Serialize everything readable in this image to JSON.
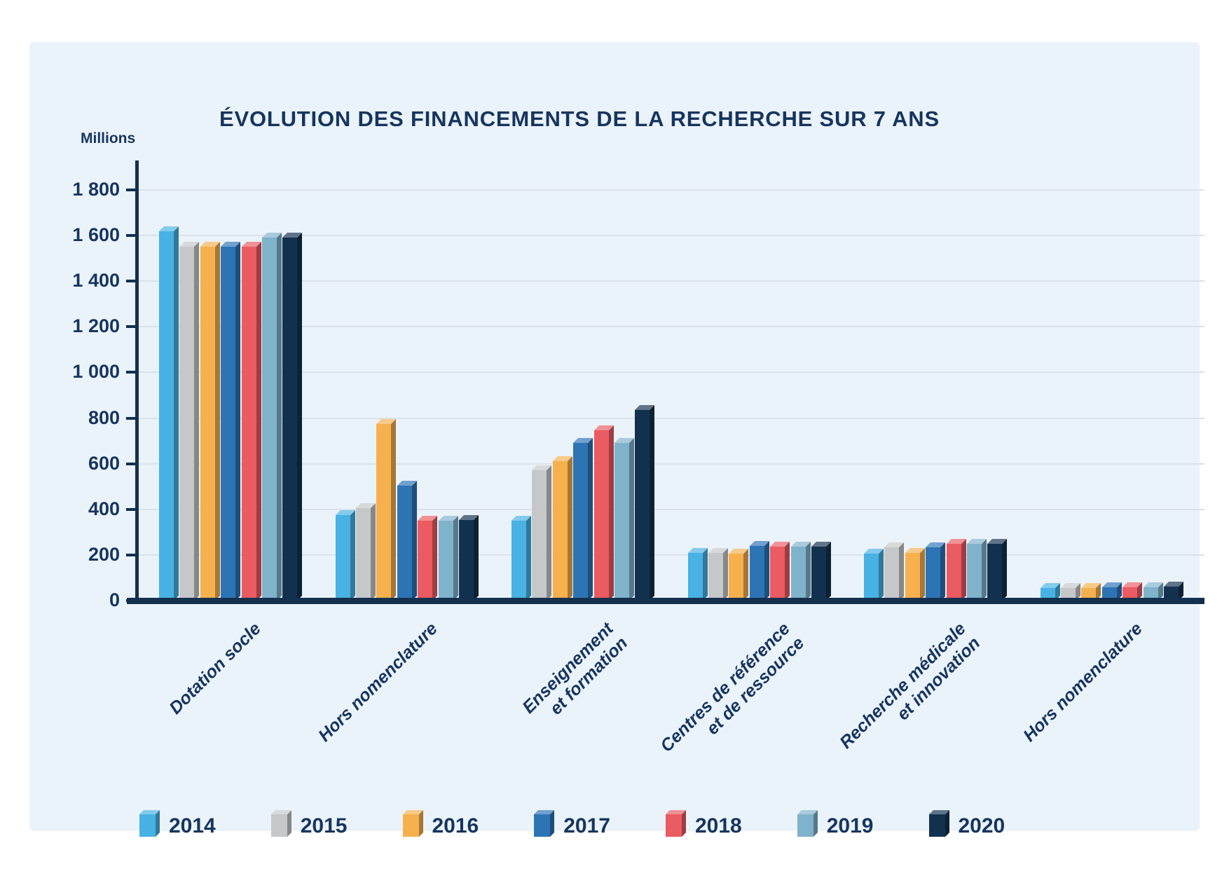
{
  "page": {
    "background": "#ffffff",
    "card_background": "#ebf3fa",
    "text_color": "#16355e",
    "axis_color": "#13304f",
    "gridline_color": "#dbe2e9"
  },
  "chart_data": {
    "type": "bar",
    "title": "ÉVOLUTION DES FINANCEMENTS DE LA RECHERCHE SUR 7 ANS",
    "ylabel": "Millions",
    "xlabel": "",
    "ylim": [
      0,
      1800
    ],
    "ytick_step": 200,
    "ytick_values": [
      1800,
      1600,
      1400,
      1200,
      1000,
      800,
      600,
      400,
      200,
      0
    ],
    "ytick_labels": [
      "1 800",
      "1 600",
      "1 400",
      "1 200",
      "1 000",
      "800",
      "600",
      "400",
      "200",
      "0"
    ],
    "grid": true,
    "bar_style": "3d-extruded",
    "legend_position": "bottom",
    "categories": [
      "Dotation socle",
      "Hors nomenclature",
      "Enseignement et formation",
      "Centres de référence et de ressource",
      "Recherche médicale et innovation",
      "Hors nomenclature"
    ],
    "category_lines": [
      [
        "Dotation socle"
      ],
      [
        "Hors nomenclature"
      ],
      [
        "Enseignement",
        "et formation"
      ],
      [
        "Centres de référence",
        "et de ressource"
      ],
      [
        "Recherche médicale",
        "et innovation"
      ],
      [
        "Hors nomenclature"
      ]
    ],
    "series": [
      {
        "name": "2014",
        "color": "#47b2e3",
        "values": [
          1620,
          375,
          350,
          210,
          205,
          55
        ]
      },
      {
        "name": "2015",
        "color": "#c6c7c9",
        "values": [
          1550,
          405,
          570,
          210,
          235,
          55
        ]
      },
      {
        "name": "2016",
        "color": "#f6b04e",
        "values": [
          1550,
          775,
          610,
          205,
          210,
          55
        ]
      },
      {
        "name": "2017",
        "color": "#2d74b5",
        "values": [
          1550,
          505,
          690,
          240,
          235,
          57
        ]
      },
      {
        "name": "2018",
        "color": "#ea5b62",
        "values": [
          1550,
          350,
          745,
          238,
          248,
          57
        ]
      },
      {
        "name": "2019",
        "color": "#7fb2cb",
        "values": [
          1590,
          350,
          690,
          238,
          248,
          57
        ]
      },
      {
        "name": "2020",
        "color": "#12314f",
        "values": [
          1590,
          352,
          835,
          238,
          250,
          60
        ]
      }
    ]
  }
}
